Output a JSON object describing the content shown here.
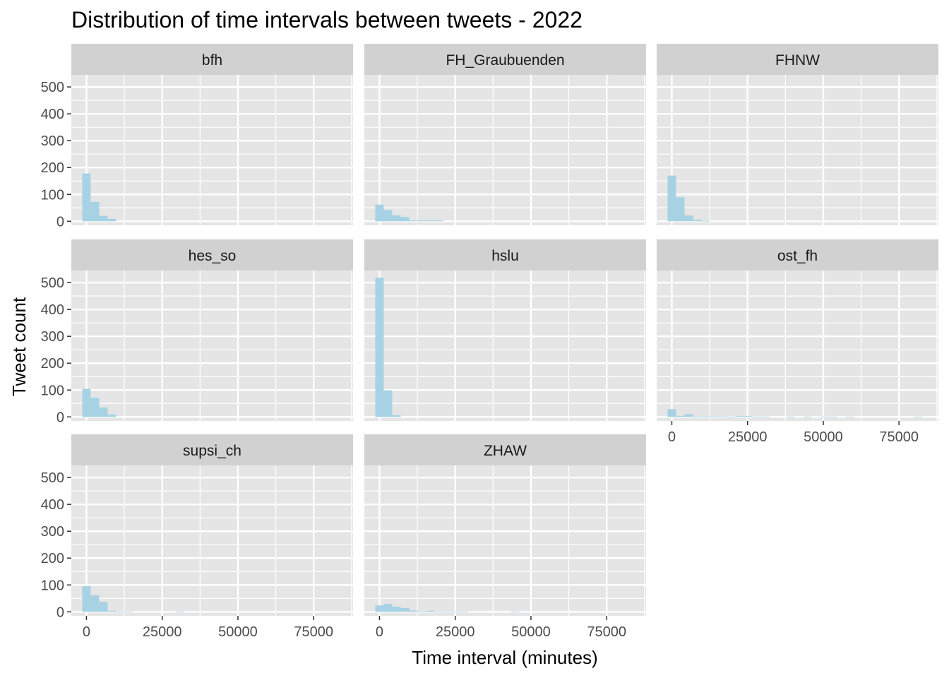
{
  "colors": {
    "panel_background": "#e5e5e5",
    "strip_background": "#d1d1d1",
    "grid_major": "#ffffff",
    "bar_fill": "#a6d2e4",
    "tick": "#333333"
  },
  "chart_data": {
    "type": "histogram",
    "layout": "facet-wrap",
    "ncol": 3,
    "title": "Distribution of time intervals between tweets - 2022",
    "xlabel": "Time interval (minutes)",
    "ylabel": "Tweet count",
    "xlim": [
      -5000,
      88000
    ],
    "ylim": [
      -15,
      545
    ],
    "x_ticks": [
      0,
      25000,
      50000,
      75000
    ],
    "x_tick_labels": [
      "0",
      "25000",
      "50000",
      "75000"
    ],
    "y_ticks": [
      0,
      100,
      200,
      300,
      400,
      500
    ],
    "y_tick_labels": [
      "0",
      "100",
      "200",
      "300",
      "400",
      "500"
    ],
    "grid": true,
    "bin_width": 2800,
    "bin_start": -1400,
    "series": [
      {
        "name": "bfh",
        "counts": [
          178,
          72,
          20,
          9
        ]
      },
      {
        "name": "FH_Graubuenden",
        "counts": [
          62,
          42,
          22,
          16,
          3,
          3,
          3,
          3
        ]
      },
      {
        "name": "FHNW",
        "counts": [
          170,
          89,
          22,
          6,
          2
        ]
      },
      {
        "name": "hes_so",
        "counts": [
          104,
          71,
          35,
          9
        ]
      },
      {
        "name": "hslu",
        "counts": [
          518,
          99,
          6
        ]
      },
      {
        "name": "ost_fh",
        "counts": [
          29,
          4,
          10,
          2,
          2,
          2,
          2,
          1,
          3,
          3,
          1,
          1,
          0,
          0,
          1,
          0,
          1,
          0,
          1,
          1,
          0,
          1,
          0,
          0,
          0,
          0,
          0,
          0,
          0,
          1
        ]
      },
      {
        "name": "supsi_ch",
        "counts": [
          96,
          62,
          37,
          4,
          1,
          1,
          0,
          0,
          0,
          0,
          0,
          1
        ]
      },
      {
        "name": "ZHAW",
        "counts": [
          24,
          29,
          19,
          14,
          5,
          2,
          4,
          1,
          1,
          1,
          1,
          0,
          0,
          0,
          0,
          0,
          1
        ]
      }
    ]
  }
}
